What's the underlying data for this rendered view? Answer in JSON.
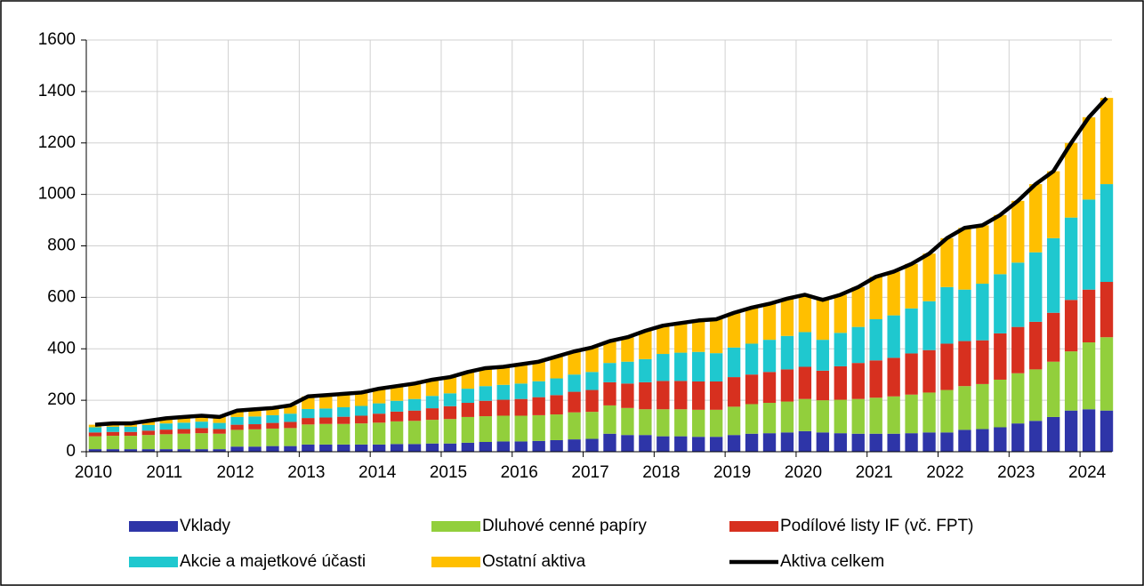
{
  "chart_data": {
    "type": "bar",
    "stacked": true,
    "grid": true,
    "legend": "bottom",
    "x": [
      2010.125,
      2010.375,
      2010.625,
      2010.875,
      2011.125,
      2011.375,
      2011.625,
      2011.875,
      2012.125,
      2012.375,
      2012.625,
      2012.875,
      2013.125,
      2013.375,
      2013.625,
      2013.875,
      2014.125,
      2014.375,
      2014.625,
      2014.875,
      2015.125,
      2015.375,
      2015.625,
      2015.875,
      2016.125,
      2016.375,
      2016.625,
      2016.875,
      2017.125,
      2017.375,
      2017.625,
      2017.875,
      2018.125,
      2018.375,
      2018.625,
      2018.875,
      2019.125,
      2019.375,
      2019.625,
      2019.875,
      2020.125,
      2020.375,
      2020.625,
      2020.875,
      2021.125,
      2021.375,
      2021.625,
      2021.875,
      2022.125,
      2022.375,
      2022.625,
      2022.875,
      2023.125,
      2023.375,
      2023.625,
      2023.875,
      2024.125,
      2024.375
    ],
    "xlim": [
      2010,
      2024.45
    ],
    "xticks": [
      2010,
      2011,
      2012,
      2013,
      2014,
      2015,
      2016,
      2017,
      2018,
      2019,
      2020,
      2021,
      2022,
      2023,
      2024
    ],
    "ylim": [
      0,
      1600
    ],
    "yticks": [
      0,
      200,
      400,
      600,
      800,
      1000,
      1200,
      1400,
      1600
    ],
    "series": [
      {
        "name": "Vklady",
        "color": "#2e35a8",
        "values": [
          10,
          10,
          10,
          10,
          10,
          10,
          10,
          10,
          20,
          20,
          22,
          22,
          28,
          28,
          28,
          28,
          28,
          30,
          30,
          32,
          32,
          35,
          38,
          40,
          40,
          42,
          45,
          48,
          50,
          70,
          65,
          65,
          60,
          60,
          58,
          58,
          65,
          70,
          72,
          75,
          80,
          75,
          72,
          70,
          70,
          70,
          72,
          75,
          75,
          85,
          88,
          95,
          110,
          120,
          135,
          160,
          165,
          160
        ]
      },
      {
        "name": "Dluhové cenné papíry",
        "color": "#92cf3c",
        "values": [
          50,
          52,
          52,
          55,
          58,
          60,
          62,
          60,
          65,
          67,
          68,
          70,
          78,
          80,
          80,
          82,
          85,
          88,
          90,
          92,
          95,
          100,
          100,
          100,
          100,
          100,
          100,
          105,
          105,
          110,
          105,
          100,
          105,
          105,
          105,
          105,
          110,
          115,
          118,
          120,
          125,
          125,
          130,
          135,
          140,
          145,
          150,
          155,
          165,
          170,
          175,
          185,
          195,
          200,
          215,
          230,
          260,
          285
        ]
      },
      {
        "name": "Podílové listy IF (vč. FPT)",
        "color": "#d7301f",
        "values": [
          15,
          15,
          15,
          17,
          18,
          18,
          20,
          18,
          20,
          20,
          22,
          24,
          25,
          25,
          28,
          30,
          35,
          38,
          40,
          45,
          50,
          55,
          60,
          62,
          65,
          70,
          75,
          80,
          85,
          90,
          95,
          105,
          110,
          110,
          110,
          110,
          115,
          115,
          120,
          125,
          125,
          115,
          130,
          140,
          145,
          150,
          160,
          165,
          180,
          175,
          170,
          180,
          180,
          185,
          190,
          200,
          205,
          215
        ]
      },
      {
        "name": "Akcie a majetkové účasti",
        "color": "#1fc8cf",
        "values": [
          20,
          20,
          20,
          22,
          24,
          25,
          25,
          24,
          30,
          30,
          30,
          32,
          35,
          35,
          37,
          38,
          40,
          42,
          45,
          48,
          50,
          55,
          57,
          58,
          60,
          62,
          65,
          67,
          70,
          75,
          85,
          90,
          105,
          110,
          115,
          110,
          115,
          120,
          125,
          130,
          135,
          120,
          130,
          140,
          160,
          165,
          175,
          190,
          220,
          200,
          220,
          230,
          250,
          270,
          290,
          320,
          350,
          380
        ]
      },
      {
        "name": "Ostatní aktiva",
        "color": "#ffbf00",
        "values": [
          10,
          13,
          13,
          16,
          20,
          22,
          23,
          23,
          25,
          28,
          28,
          32,
          49,
          52,
          52,
          52,
          57,
          57,
          60,
          63,
          63,
          65,
          70,
          70,
          75,
          76,
          85,
          90,
          95,
          85,
          95,
          110,
          110,
          115,
          122,
          132,
          135,
          140,
          140,
          145,
          145,
          155,
          148,
          155,
          165,
          170,
          173,
          185,
          190,
          240,
          227,
          230,
          240,
          265,
          260,
          290,
          320,
          335
        ]
      },
      {
        "name": "Aktiva celkem",
        "type": "line",
        "color": "#000000",
        "values": [
          105,
          110,
          110,
          120,
          130,
          135,
          140,
          135,
          160,
          165,
          170,
          180,
          215,
          220,
          225,
          230,
          245,
          255,
          265,
          280,
          290,
          310,
          325,
          330,
          340,
          350,
          370,
          390,
          405,
          430,
          445,
          470,
          490,
          500,
          510,
          515,
          540,
          560,
          575,
          595,
          610,
          590,
          610,
          640,
          680,
          700,
          730,
          770,
          830,
          870,
          880,
          920,
          975,
          1040,
          1090,
          1200,
          1300,
          1375
        ]
      }
    ]
  }
}
